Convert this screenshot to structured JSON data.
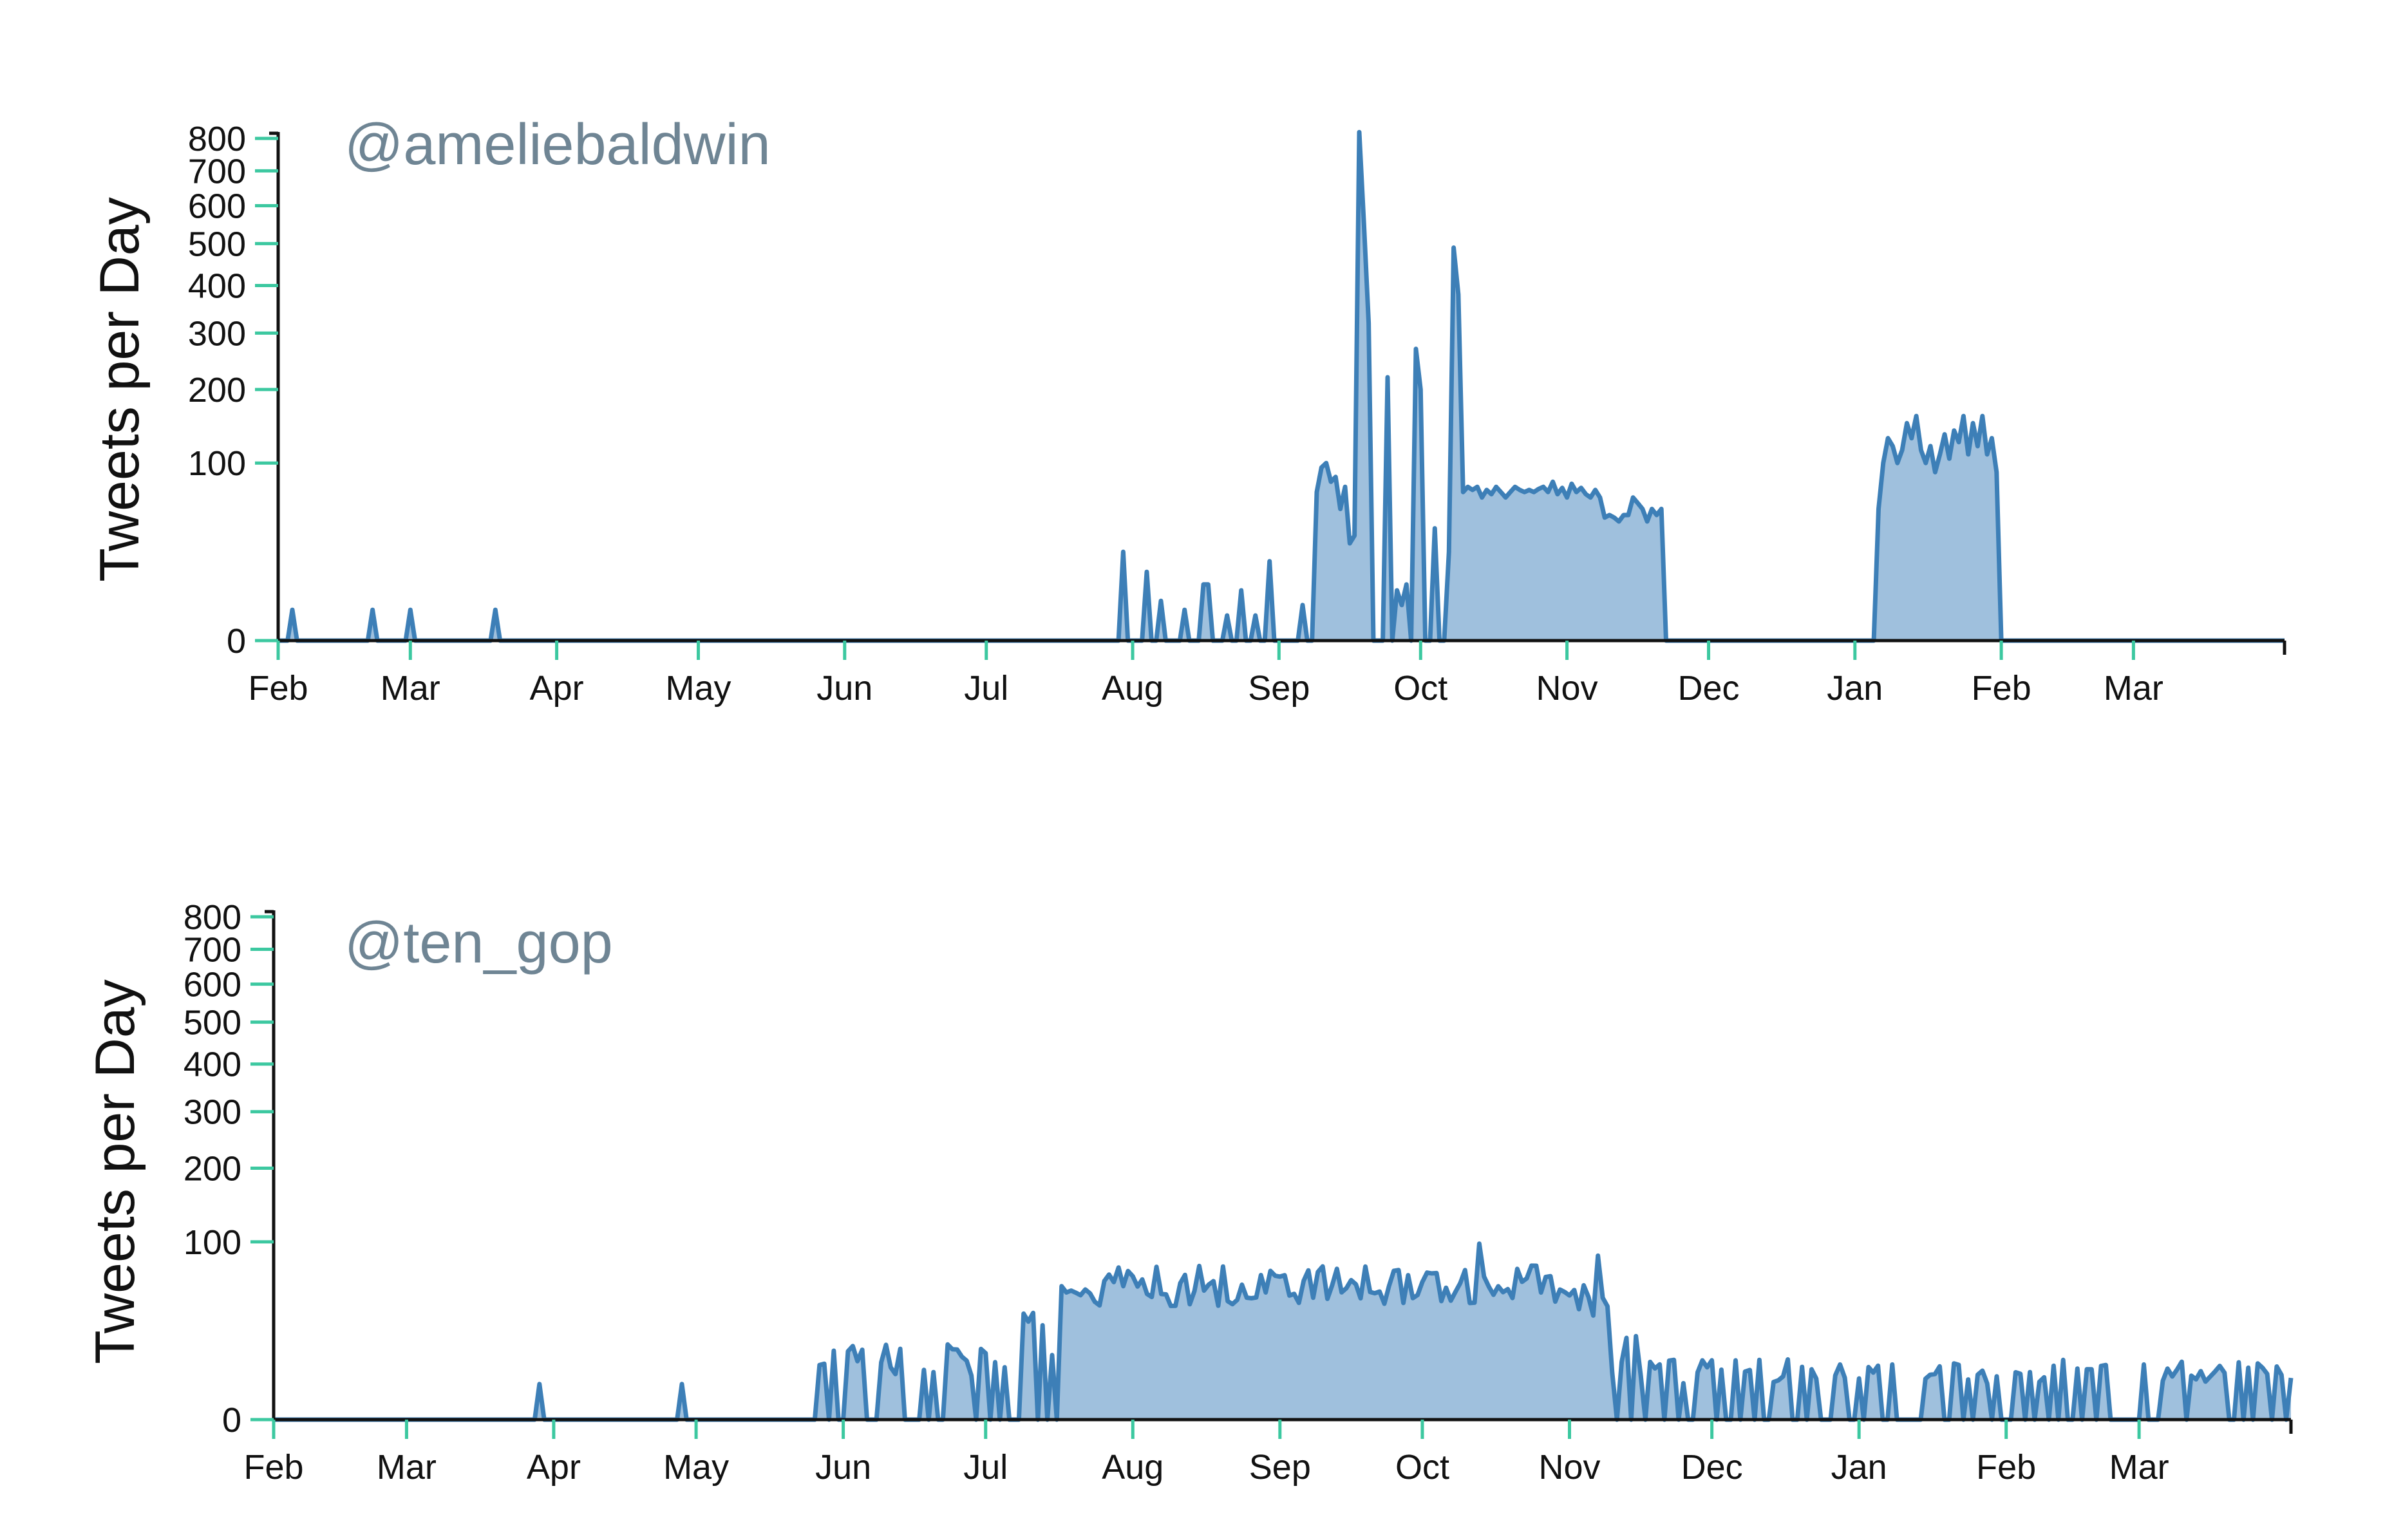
{
  "chart_data": [
    {
      "type": "area",
      "title": "@ameliebaldwin",
      "xlabel": "",
      "ylabel": "Tweets per Day",
      "y_scale": "sqrt",
      "ylim": [
        0,
        800
      ],
      "yticks": [
        0,
        100,
        200,
        300,
        400,
        500,
        600,
        700,
        800
      ],
      "month_labels": [
        "Feb",
        "Mar",
        "Apr",
        "May",
        "Jun",
        "Jul",
        "Aug",
        "Sep",
        "Oct",
        "Nov",
        "Dec",
        "Jan",
        "Feb",
        "Mar"
      ],
      "x_unit": "days since start of axis",
      "xlim": [
        0,
        425
      ],
      "series": [
        {
          "name": "",
          "color": "#3d7fb7",
          "fill": "#9fc0dd",
          "anchors": [
            [
              0,
              0
            ],
            [
              2,
              0
            ],
            [
              3,
              3
            ],
            [
              4,
              0
            ],
            [
              19,
              0
            ],
            [
              20,
              3
            ],
            [
              21,
              0
            ],
            [
              27,
              0
            ],
            [
              28,
              3
            ],
            [
              29,
              0
            ],
            [
              45,
              0
            ],
            [
              46,
              3
            ],
            [
              47,
              0
            ],
            [
              178,
              0
            ],
            [
              179,
              25
            ],
            [
              180,
              0
            ],
            [
              183,
              0
            ],
            [
              184,
              15
            ],
            [
              185,
              0
            ],
            [
              186,
              0
            ],
            [
              187,
              5
            ],
            [
              188,
              0
            ],
            [
              191,
              0
            ],
            [
              192,
              3
            ],
            [
              193,
              0
            ],
            [
              195,
              0
            ],
            [
              196,
              10
            ],
            [
              197,
              10
            ],
            [
              198,
              0
            ],
            [
              200,
              0
            ],
            [
              201,
              2
            ],
            [
              202,
              0
            ],
            [
              203,
              0
            ],
            [
              204,
              8
            ],
            [
              205,
              0
            ],
            [
              206,
              0
            ],
            [
              207,
              2
            ],
            [
              208,
              0
            ],
            [
              209,
              0
            ],
            [
              210,
              20
            ],
            [
              211,
              0
            ],
            [
              216,
              0
            ],
            [
              217,
              4
            ],
            [
              218,
              0
            ],
            [
              219,
              0
            ],
            [
              220,
              70
            ],
            [
              221,
              95
            ],
            [
              222,
              100
            ],
            [
              223,
              80
            ],
            [
              224,
              85
            ],
            [
              225,
              55
            ],
            [
              226,
              75
            ],
            [
              227,
              30
            ],
            [
              228,
              35
            ],
            [
              229,
              820
            ],
            [
              230,
              550
            ],
            [
              231,
              320
            ],
            [
              232,
              0
            ],
            [
              234,
              0
            ],
            [
              235,
              220
            ],
            [
              236,
              0
            ],
            [
              237,
              8
            ],
            [
              238,
              4
            ],
            [
              239,
              10
            ],
            [
              240,
              0
            ],
            [
              241,
              270
            ],
            [
              242,
              200
            ],
            [
              243,
              0
            ],
            [
              244,
              0
            ],
            [
              245,
              40
            ],
            [
              246,
              0
            ],
            [
              247,
              0
            ],
            [
              248,
              25
            ],
            [
              249,
              490
            ],
            [
              250,
              380
            ],
            [
              251,
              70
            ],
            [
              252,
              75
            ],
            [
              253,
              72
            ],
            [
              254,
              75
            ],
            [
              255,
              65
            ],
            [
              256,
              72
            ],
            [
              257,
              68
            ],
            [
              258,
              75
            ],
            [
              259,
              70
            ],
            [
              260,
              65
            ],
            [
              261,
              70
            ],
            [
              262,
              75
            ],
            [
              263,
              72
            ],
            [
              264,
              70
            ],
            [
              265,
              72
            ],
            [
              266,
              70
            ],
            [
              267,
              73
            ],
            [
              268,
              75
            ],
            [
              269,
              70
            ],
            [
              270,
              80
            ],
            [
              271,
              68
            ],
            [
              272,
              74
            ],
            [
              273,
              65
            ],
            [
              274,
              78
            ],
            [
              275,
              70
            ],
            [
              276,
              74
            ],
            [
              277,
              68
            ],
            [
              278,
              65
            ],
            [
              279,
              72
            ],
            [
              280,
              65
            ],
            [
              281,
              48
            ],
            [
              282,
              50
            ],
            [
              283,
              48
            ],
            [
              284,
              45
            ],
            [
              285,
              50
            ],
            [
              286,
              50
            ],
            [
              287,
              65
            ],
            [
              288,
              60
            ],
            [
              289,
              55
            ],
            [
              290,
              45
            ],
            [
              291,
              55
            ],
            [
              292,
              50
            ],
            [
              293,
              55
            ],
            [
              294,
              0
            ],
            [
              338,
              0
            ],
            [
              339,
              55
            ],
            [
              340,
              100
            ],
            [
              341,
              130
            ],
            [
              342,
              120
            ],
            [
              343,
              100
            ],
            [
              344,
              115
            ],
            [
              345,
              150
            ],
            [
              346,
              130
            ],
            [
              347,
              160
            ],
            [
              348,
              115
            ],
            [
              349,
              100
            ],
            [
              350,
              120
            ],
            [
              351,
              90
            ],
            [
              352,
              110
            ],
            [
              353,
              135
            ],
            [
              354,
              105
            ],
            [
              355,
              140
            ],
            [
              356,
              125
            ],
            [
              357,
              160
            ],
            [
              358,
              110
            ],
            [
              359,
              150
            ],
            [
              360,
              120
            ],
            [
              361,
              160
            ],
            [
              362,
              110
            ],
            [
              363,
              130
            ],
            [
              364,
              90
            ],
            [
              365,
              0
            ],
            [
              425,
              0
            ]
          ]
        }
      ]
    },
    {
      "type": "area",
      "title": "@ten_gop",
      "xlabel": "",
      "ylabel": "Tweets per Day",
      "y_scale": "sqrt",
      "ylim": [
        0,
        800
      ],
      "yticks": [
        0,
        100,
        200,
        300,
        400,
        500,
        600,
        700,
        800
      ],
      "month_labels": [
        "Feb",
        "Mar",
        "Apr",
        "May",
        "Jun",
        "Jul",
        "Aug",
        "Sep",
        "Oct",
        "Nov",
        "Dec",
        "Jan",
        "Feb",
        "Mar"
      ],
      "x_unit": "days since start of axis",
      "xlim": [
        0,
        425
      ],
      "series": [
        {
          "name": "",
          "color": "#3d7fb7",
          "fill": "#9fc0dd",
          "activity": [
            [
              0,
              55,
              0
            ],
            [
              115,
              155,
              6
            ],
            [
              156,
              165,
              28
            ],
            [
              166,
              175,
              48
            ],
            [
              176,
              270,
              58
            ],
            [
              271,
              281,
              45
            ],
            [
              282,
              287,
              14
            ],
            [
              288,
              425,
              4
            ]
          ],
          "spikes": [
            [
              56,
              4
            ],
            [
              57,
              0
            ],
            [
              86,
              4
            ],
            [
              87,
              0
            ],
            [
              160,
              36
            ],
            [
              184,
              50
            ],
            [
              236,
              70
            ],
            [
              247,
              55
            ],
            [
              254,
              98
            ],
            [
              265,
              75
            ],
            [
              279,
              85
            ],
            [
              324,
              8
            ],
            [
              354,
              10
            ],
            [
              383,
              8
            ],
            [
              418,
              10
            ]
          ]
        }
      ]
    }
  ]
}
